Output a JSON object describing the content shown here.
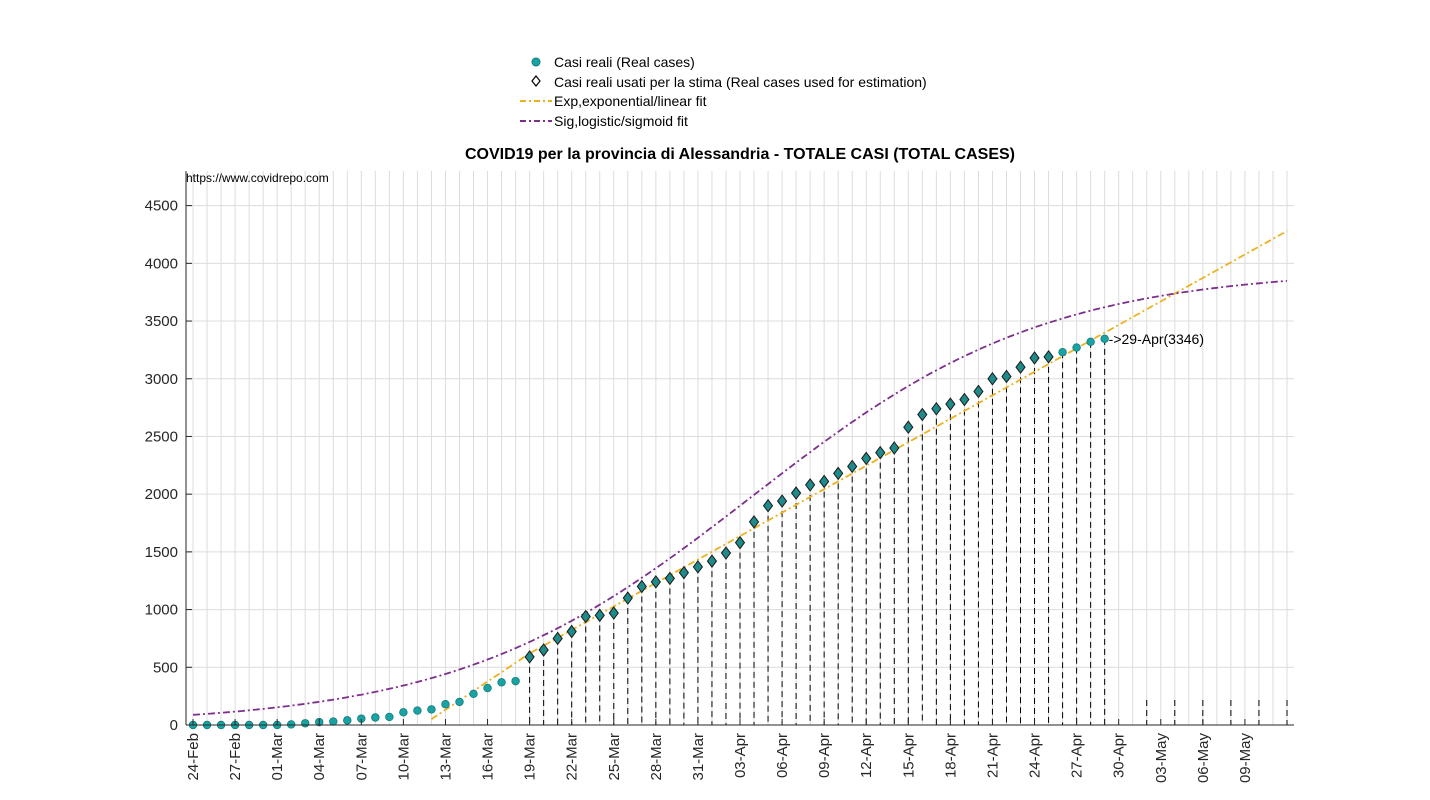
{
  "chart_data": {
    "type": "scatter",
    "title": "COVID19 per la provincia di Alessandria - TOTALE CASI (TOTAL CASES)",
    "watermark": "https://www.covidrepo.com",
    "annotation": {
      "text": "->29-Apr(3346)",
      "x_index": 65,
      "y": 3346
    },
    "legend": {
      "placement": "top-center",
      "entries": [
        "Casi reali (Real cases)",
        "Casi reali usati per la stima (Real cases used for estimation)",
        "Exp,exponential/linear fit",
        "Sig,logistic/sigmoid fit"
      ]
    },
    "x_tick_labels": [
      "24-Feb",
      "27-Feb",
      "01-Mar",
      "04-Mar",
      "07-Mar",
      "10-Mar",
      "13-Mar",
      "16-Mar",
      "19-Mar",
      "22-Mar",
      "25-Mar",
      "28-Mar",
      "31-Mar",
      "03-Apr",
      "06-Apr",
      "09-Apr",
      "12-Apr",
      "15-Apr",
      "18-Apr",
      "21-Apr",
      "24-Apr",
      "27-Apr",
      "30-Apr",
      "03-May",
      "06-May",
      "09-May"
    ],
    "x_start": "24-Feb",
    "x_range_days": [
      -0.5,
      78.5
    ],
    "ylim": [
      0,
      4800
    ],
    "y_ticks": [
      0,
      500,
      1000,
      1500,
      2000,
      2500,
      3000,
      3500,
      4000,
      4500
    ],
    "grid": true,
    "colors": {
      "real": "#1aa3a3",
      "estimation_marker": "#1f8a8a",
      "exp_fit": "#EDB120",
      "sig_fit": "#7E2F8E"
    },
    "real_cases": [
      0,
      0,
      0,
      0,
      0,
      0,
      0,
      5,
      15,
      25,
      30,
      40,
      55,
      65,
      70,
      110,
      125,
      135,
      180,
      200,
      270,
      320,
      370,
      380,
      590,
      650,
      750,
      810,
      940,
      950,
      970,
      1100,
      1200,
      1240,
      1270,
      1320,
      1370,
      1420,
      1490,
      1580,
      1760,
      1900,
      1940,
      2010,
      2080,
      2110,
      2180,
      2240,
      2310,
      2360,
      2400,
      2580,
      2690,
      2740,
      2780,
      2820,
      2890,
      3000,
      3020,
      3100,
      3180,
      3190,
      3230,
      3270,
      3320,
      3346
    ],
    "estimation_start_index": 24,
    "exp_fit": {
      "start_index": 17,
      "start_value": 50,
      "end_index": 78,
      "end_value": 4280,
      "mid_index": 24,
      "mid_value": 620
    },
    "sig_fit": {
      "L": 3950,
      "k": 0.095,
      "x0": 39.8,
      "end_index": 78
    }
  }
}
